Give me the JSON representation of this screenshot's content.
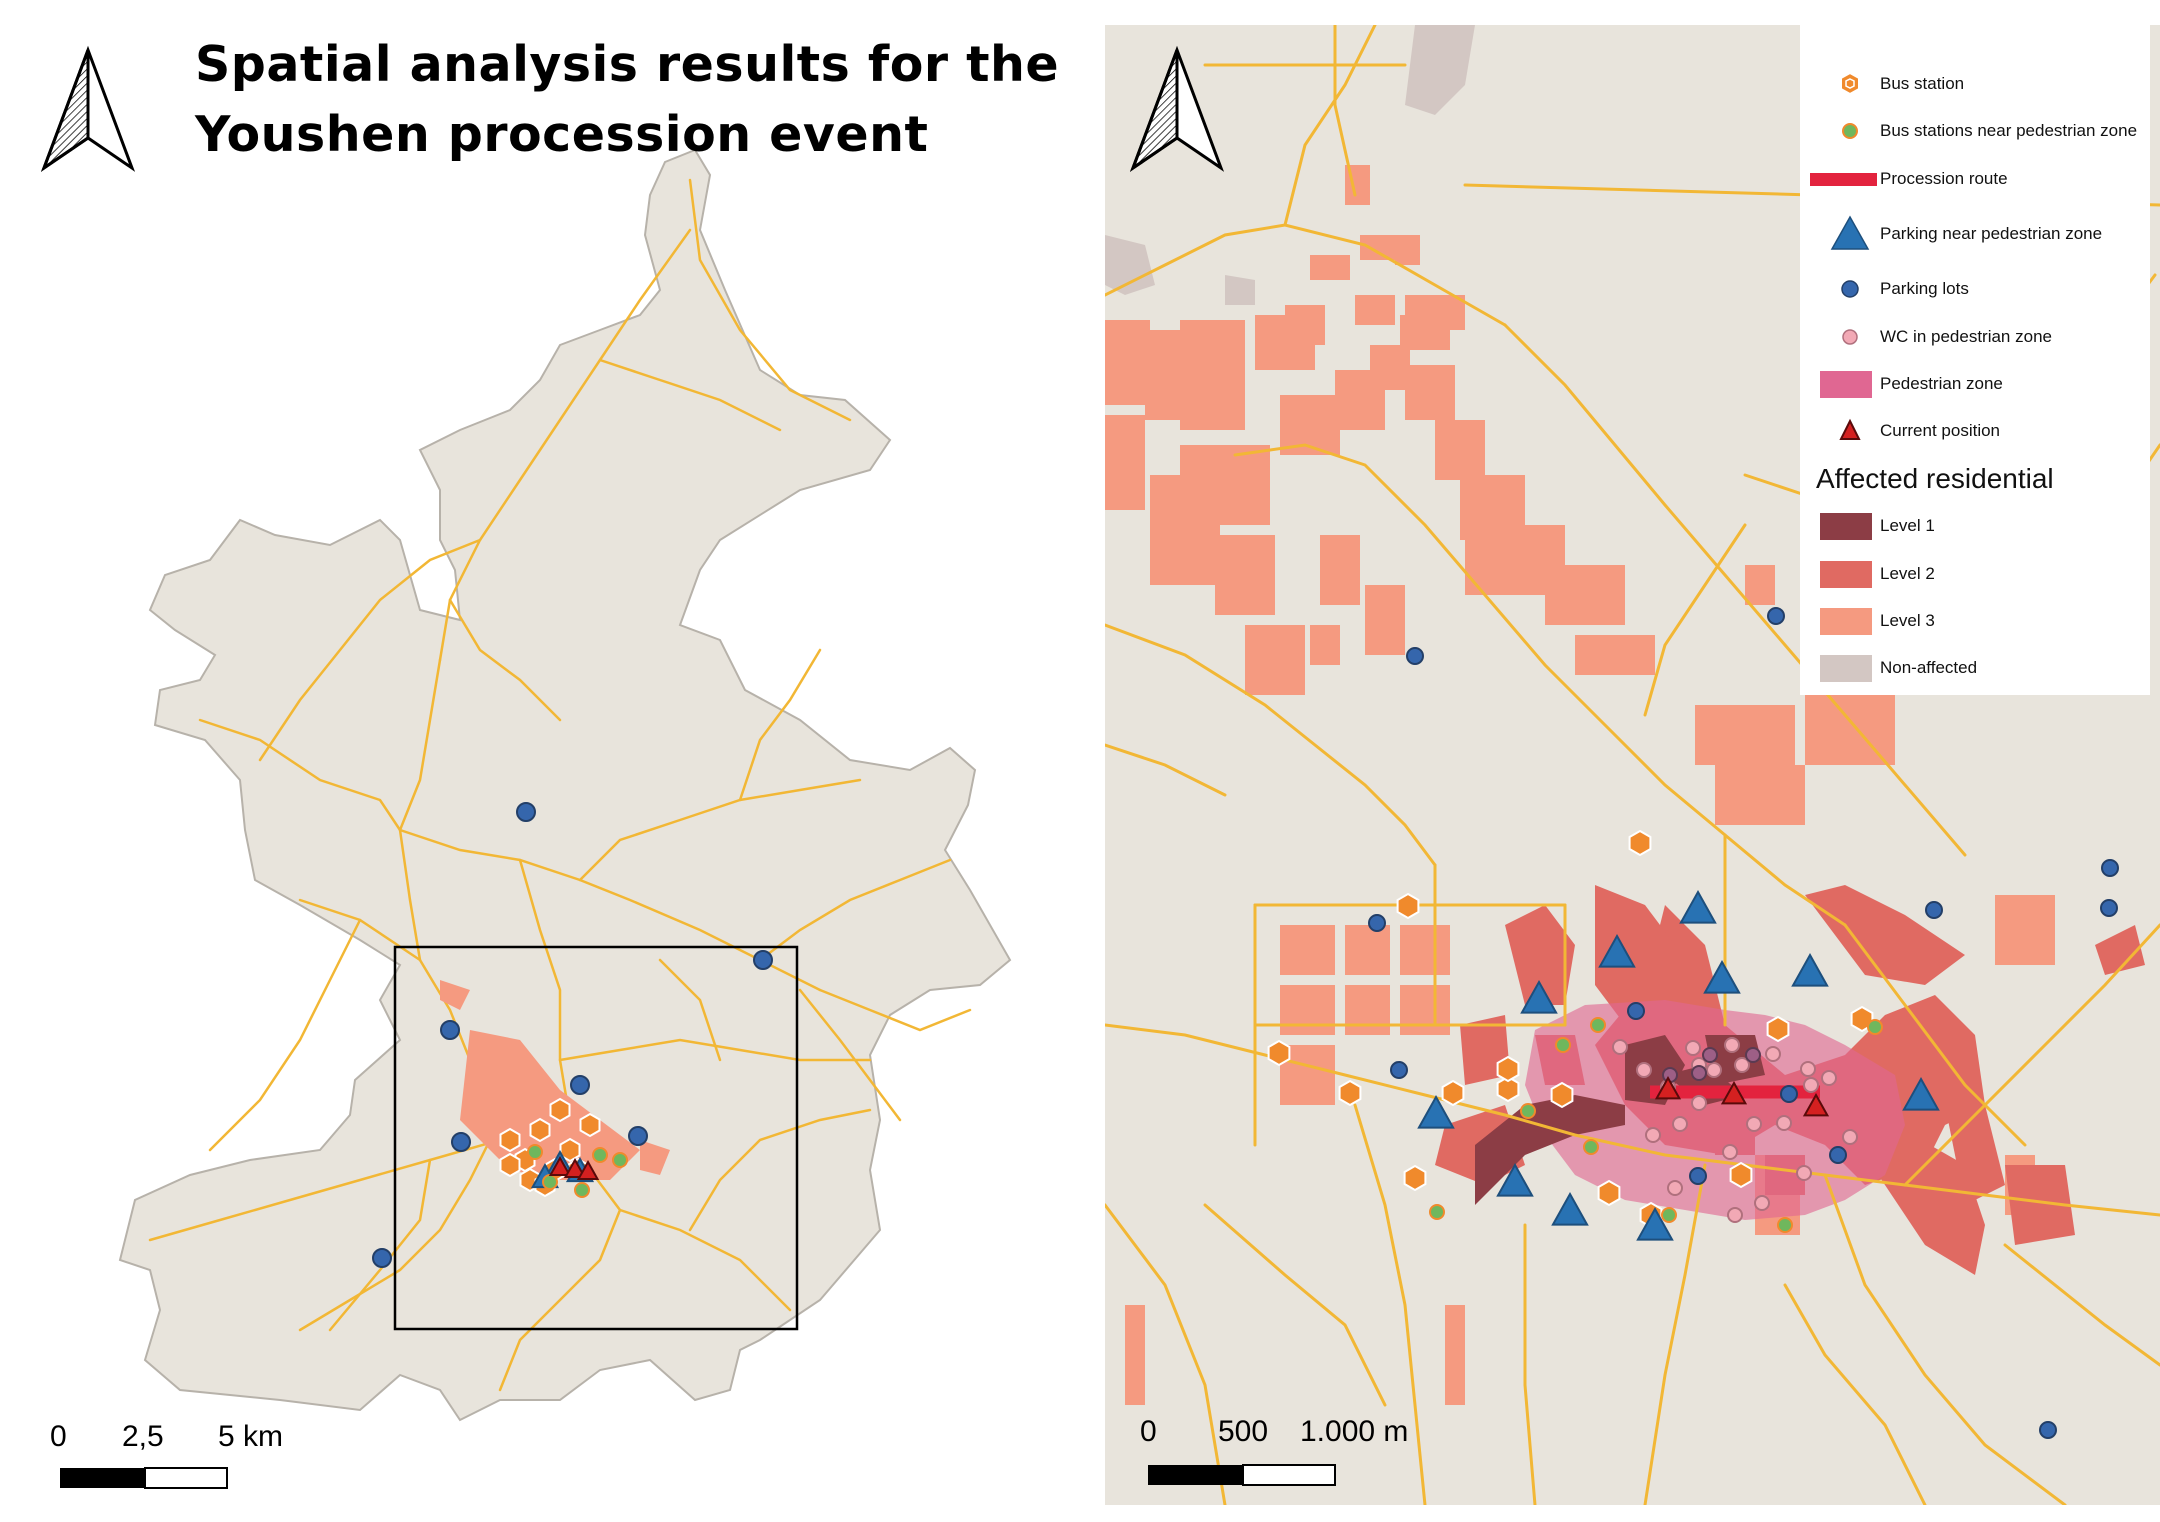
{
  "title": {
    "line1": "Spatial analysis results for the",
    "line2": "Youshen procession event"
  },
  "icons": {
    "north_arrow": "north-arrow-icon"
  },
  "colors": {
    "land": "#e8e4dc",
    "road": "#f2b735",
    "level1": "#8c3d45",
    "level2": "#e06a62",
    "level3": "#f59a80",
    "non_affected": "#d3c7c3",
    "pedestrian_zone": "#e06792",
    "procession_route": "#e3233e",
    "bus_station": "#f08a2c",
    "bus_near": "#6fb75d",
    "parking": "#2872b3",
    "parking_lot": "#3566ac",
    "wc": "#f2a9b5",
    "current": "#d42020"
  },
  "left_scale": {
    "label_0": "0",
    "label_1": "2,5",
    "label_2": "5 km"
  },
  "right_scale": {
    "label_0": "0",
    "label_1": "500",
    "label_2": "1.000 m"
  },
  "legend": {
    "items": [
      {
        "label": "Bus station"
      },
      {
        "label": "Bus stations near pedestrian zone"
      },
      {
        "label": "Procession route"
      },
      {
        "label": "Parking near pedestrian zone"
      },
      {
        "label": "Parking lots"
      },
      {
        "label": "WC in pedestrian zone"
      },
      {
        "label": "Pedestrian zone"
      },
      {
        "label": "Current position"
      }
    ],
    "heading": "Affected residential",
    "levels": [
      {
        "label": "Level 1"
      },
      {
        "label": "Level 2"
      },
      {
        "label": "Level 3"
      },
      {
        "label": "Non-affected"
      }
    ]
  }
}
